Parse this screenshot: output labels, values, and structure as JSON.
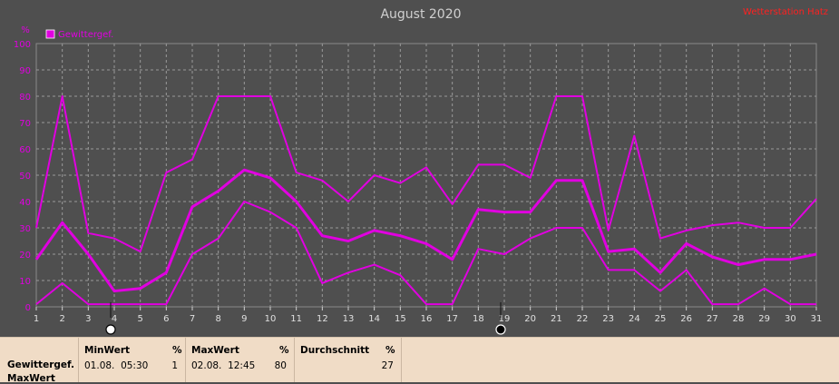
{
  "chart_data": {
    "type": "line",
    "title": "August 2020",
    "ylabel": "%",
    "ylim": [
      0,
      100
    ],
    "yticks": [
      0,
      10,
      20,
      30,
      40,
      50,
      60,
      70,
      80,
      90,
      100
    ],
    "x": [
      1,
      2,
      3,
      4,
      5,
      6,
      7,
      8,
      9,
      10,
      11,
      12,
      13,
      14,
      15,
      16,
      17,
      18,
      19,
      20,
      21,
      22,
      23,
      24,
      25,
      26,
      27,
      28,
      29,
      30,
      31
    ],
    "legend": "Gewittergef.",
    "grid": true,
    "series": [
      {
        "role": "max",
        "values": [
          30,
          80,
          28,
          26,
          21,
          51,
          56,
          80,
          80,
          80,
          51,
          48,
          40,
          50,
          47,
          53,
          39,
          54,
          54,
          49,
          80,
          80,
          29,
          65,
          26,
          29,
          31,
          32,
          30,
          30,
          41
        ]
      },
      {
        "role": "mean",
        "values": [
          18,
          32,
          20,
          6,
          7,
          13,
          38,
          44,
          52,
          49,
          40,
          27,
          25,
          29,
          27,
          24,
          18,
          37,
          36,
          36,
          48,
          48,
          21,
          22,
          13,
          24,
          19,
          16,
          18,
          18,
          20
        ]
      },
      {
        "role": "min",
        "values": [
          1,
          9,
          1,
          1,
          1,
          1,
          20,
          26,
          40,
          36,
          30,
          9,
          13,
          16,
          12,
          1,
          1,
          22,
          20,
          26,
          30,
          30,
          14,
          14,
          6,
          14,
          1,
          1,
          7,
          1,
          1
        ]
      }
    ],
    "colors": {
      "series": "#e000e0",
      "background": "#4f4f4f",
      "grid": "#9a9a9a"
    }
  },
  "header": {
    "brand": "Wetterstation Hatz"
  },
  "markers": [
    {
      "x": 4,
      "type": "open"
    },
    {
      "x": 19,
      "type": "filled"
    }
  ],
  "summary": {
    "row_labels": [
      "Gewittergef.",
      "MaxWert"
    ],
    "min": {
      "head": "MinWert",
      "unit": "%",
      "date": "01.08.  05:30",
      "value": "1"
    },
    "max": {
      "head": "MaxWert",
      "unit": "%",
      "date": "02.08.  12:45",
      "value": "80"
    },
    "avg": {
      "head": "Durchschnitt",
      "unit": "%",
      "value": "27"
    }
  }
}
